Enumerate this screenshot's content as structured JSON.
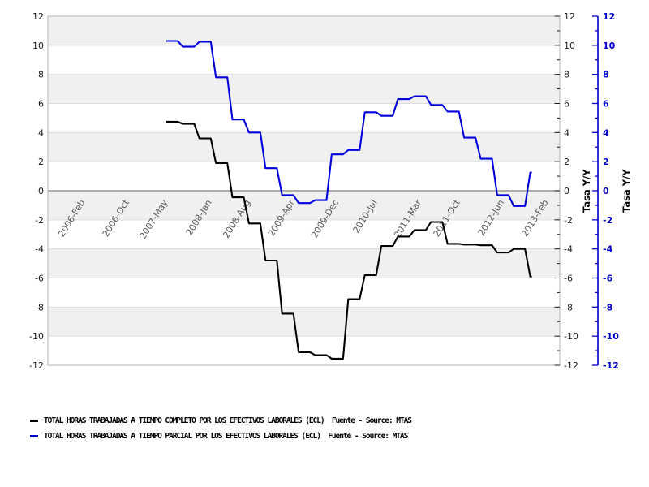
{
  "legend": {
    "items": [
      {
        "label": "TOTAL HORAS TRABAJADAS A TIEMPO COMPLETO POR LOS EFECTIVOS LABORALES (ECL)  Fuente - Source: MTAS",
        "color": "#000000"
      },
      {
        "label": "TOTAL HORAS TRABAJADAS A TIEMPO PARCIAL POR LOS EFECTIVOS LABORALES (ECL)  Fuente - Source: MTAS",
        "color": "#0000dd"
      }
    ]
  },
  "chart_data": {
    "type": "line",
    "step": true,
    "title": "",
    "xlabel": "",
    "ylabel_right_black": "Tasa Y/Y",
    "ylabel_right_blue": "Tasa Y/Y",
    "ylim": [
      -12,
      12
    ],
    "ytick_step": 2,
    "yminor_step": 1,
    "grid": "alternating-bands",
    "legend_position": "bottom-left",
    "x_ticks": [
      {
        "label": "2006-Feb",
        "month": 1
      },
      {
        "label": "2006-Oct",
        "month": 9
      },
      {
        "label": "2007-May",
        "month": 16
      },
      {
        "label": "2008-Jan",
        "month": 24
      },
      {
        "label": "2008-Aug",
        "month": 31
      },
      {
        "label": "2009-Apr",
        "month": 39
      },
      {
        "label": "2009-Dec",
        "month": 47
      },
      {
        "label": "2010-Jul",
        "month": 54
      },
      {
        "label": "2011-Mar",
        "month": 62
      },
      {
        "label": "2011-Oct",
        "month": 69
      },
      {
        "label": "2012-Jun",
        "month": 77
      },
      {
        "label": "2013-Feb",
        "month": 85
      }
    ],
    "series_start_month": 16,
    "quarter_step_months": 3,
    "quarters": [
      "2007-Q2",
      "2007-Q3",
      "2007-Q4",
      "2008-Q1",
      "2008-Q2",
      "2008-Q3",
      "2008-Q4",
      "2009-Q1",
      "2009-Q2",
      "2009-Q3",
      "2009-Q4",
      "2010-Q1",
      "2010-Q2",
      "2010-Q3",
      "2010-Q4",
      "2011-Q1",
      "2011-Q2",
      "2011-Q3",
      "2011-Q4",
      "2012-Q1",
      "2012-Q2",
      "2012-Q3",
      "2012-Q4"
    ],
    "series": [
      {
        "name": "TOTAL HORAS TRABAJADAS A TIEMPO COMPLETO POR LOS EFECTIVOS LABORALES (ECL)",
        "source": "Fuente - Source: MTAS",
        "color": "#000000",
        "values": [
          4.75,
          4.6,
          3.6,
          1.9,
          -0.45,
          -2.25,
          -4.8,
          -8.45,
          -11.1,
          -11.3,
          -11.55,
          -7.45,
          -5.8,
          -3.8,
          -3.15,
          -2.7,
          -2.15,
          -3.65,
          -3.7,
          -3.75,
          -4.25,
          -4.0,
          -5.9
        ]
      },
      {
        "name": "TOTAL HORAS TRABAJADAS A TIEMPO PARCIAL POR LOS EFECTIVOS LABORALES (ECL)",
        "source": "Fuente - Source: MTAS",
        "color": "#0000dd",
        "values": [
          10.3,
          9.9,
          10.25,
          7.8,
          4.9,
          4.0,
          1.55,
          -0.3,
          -0.85,
          -0.65,
          2.5,
          2.8,
          5.4,
          5.15,
          6.3,
          6.5,
          5.9,
          5.45,
          3.65,
          2.2,
          -0.3,
          -1.05,
          1.25
        ]
      }
    ],
    "colors": {
      "band_gray": "#f0f0f0",
      "band_white": "#ffffff",
      "grid_line": "#dcdcdc",
      "zero_line": "#808080",
      "plot_border": "#b3b3b3",
      "x_label": "#595959",
      "tick_label": "#1a1a1a",
      "blue_axis": "#0000cc"
    }
  }
}
